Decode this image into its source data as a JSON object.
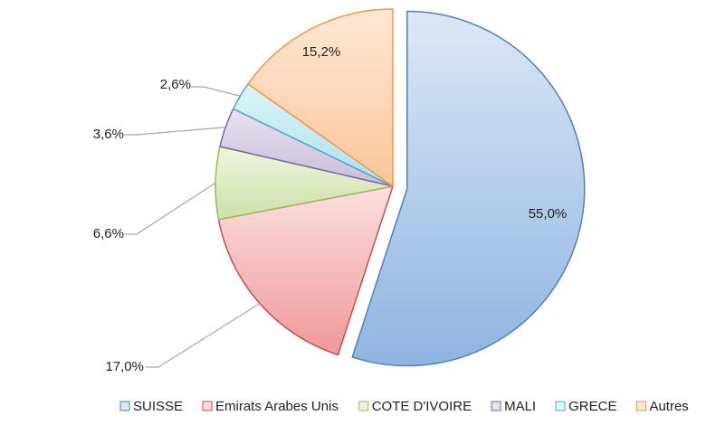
{
  "chart_data": {
    "type": "pie",
    "title": "",
    "slices": [
      {
        "name": "SUISSE",
        "value": 55.0,
        "label": "55,0%",
        "fill_top": "#dce8f6",
        "fill_bottom": "#8fb4e0",
        "stroke": "#4f81bd"
      },
      {
        "name": "Emirats Arabes Unis",
        "value": 17.0,
        "label": "17,0%",
        "fill_top": "#fbe0e0",
        "fill_bottom": "#f09898",
        "stroke": "#c0504d"
      },
      {
        "name": "COTE D'IVOIRE",
        "value": 6.6,
        "label": "6,6%",
        "fill_top": "#eef5df",
        "fill_bottom": "#cde0a8",
        "stroke": "#9bbb59"
      },
      {
        "name": "MALI",
        "value": 3.6,
        "label": "3,6%",
        "fill_top": "#e8e2f0",
        "fill_bottom": "#c8bcdc",
        "stroke": "#8064a2"
      },
      {
        "name": "GRECE",
        "value": 2.6,
        "label": "2,6%",
        "fill_top": "#def4f9",
        "fill_bottom": "#a8e2ef",
        "stroke": "#4bacc6"
      },
      {
        "name": "Autres",
        "value": 15.2,
        "label": "15,2%",
        "fill_top": "#fde8d6",
        "fill_bottom": "#fbc69a",
        "stroke": "#f79646"
      }
    ],
    "legend": {
      "position": "bottom"
    },
    "exploded_slice": "SUISSE"
  }
}
